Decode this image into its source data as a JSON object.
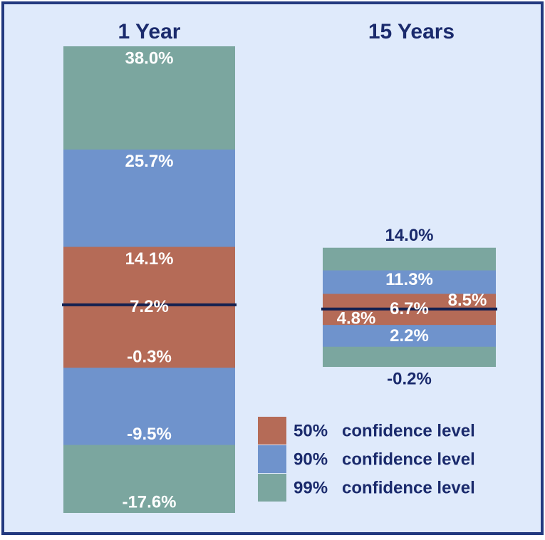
{
  "chart_data": {
    "type": "range_bar",
    "categories": [
      "1 Year",
      "15 Years"
    ],
    "series": [
      {
        "name": "99%   confidence level",
        "color": "#7ba69f",
        "low": [
          -17.6,
          -0.2
        ],
        "high": [
          38.0,
          14.0
        ],
        "low_labels": [
          "-17.6%",
          "-0.2%"
        ],
        "high_labels": [
          "38.0%",
          "14.0%"
        ]
      },
      {
        "name": "90%   confidence level",
        "color": "#6f93cc",
        "low": [
          -9.5,
          2.2
        ],
        "high": [
          25.7,
          11.3
        ],
        "low_labels": [
          "-9.5%",
          "2.2%"
        ],
        "high_labels": [
          "25.7%",
          "11.3%"
        ]
      },
      {
        "name": "50%   confidence level",
        "color": "#b56b57",
        "low": [
          -0.3,
          4.8
        ],
        "high": [
          14.1,
          8.5
        ],
        "low_labels": [
          "-0.3%",
          "4.8%"
        ],
        "high_labels": [
          "14.1%",
          "8.5%"
        ]
      }
    ],
    "medians": {
      "values": [
        7.2,
        6.7
      ],
      "value_labels": [
        "7.2%",
        "6.7%"
      ],
      "color": "#132050"
    }
  }
}
